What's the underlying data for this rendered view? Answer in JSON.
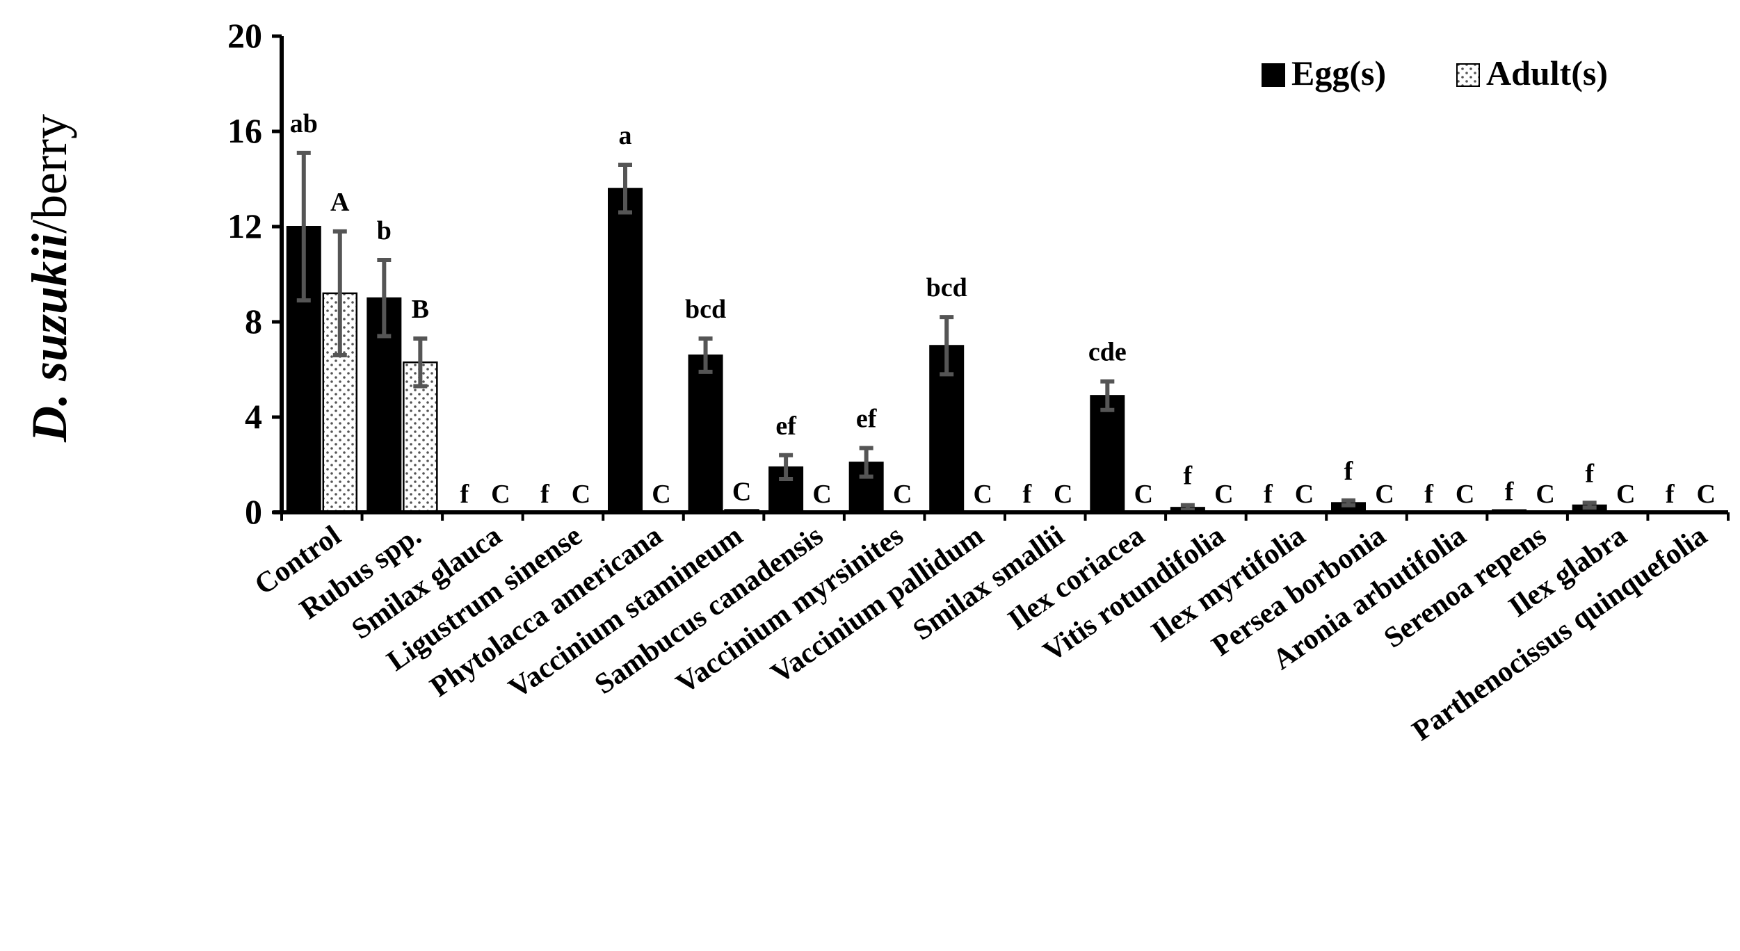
{
  "chart_data": {
    "type": "bar",
    "ylabel_italic": "D. suzukii",
    "ylabel_rest": "/berry",
    "xlabel": "",
    "title": "",
    "ylim": [
      0,
      20
    ],
    "yticks": [
      "0",
      "4",
      "8",
      "12",
      "16",
      "20"
    ],
    "legend_position": "top-right",
    "categories": [
      "Control",
      "Rubus spp.",
      "Smilax glauca",
      "Ligustrum sinense",
      "Phytolacca americana",
      "Vaccinium stamineum",
      "Sambucus canadensis",
      "Vaccinium myrsinites",
      "Vaccinium pallidum",
      "Smilax smallii",
      "Ilex coriacea",
      "Vitis rotundifolia",
      "Ilex myrtifolia",
      "Persea borbonia",
      "Aronia arbutifolia",
      "Serenoa repens",
      "Ilex glabra",
      "Parthenocissus quinquefolia"
    ],
    "series": [
      {
        "name": "Egg(s)",
        "color": "#000000",
        "values": [
          12.0,
          9.0,
          0.0,
          0.0,
          13.6,
          6.6,
          1.9,
          2.1,
          7.0,
          0.0,
          4.9,
          0.2,
          0.0,
          0.4,
          0.0,
          0.1,
          0.3,
          0.0
        ],
        "errors": [
          3.1,
          1.6,
          0.0,
          0.0,
          1.0,
          0.7,
          0.5,
          0.6,
          1.2,
          0.0,
          0.6,
          0.1,
          0.0,
          0.1,
          0.0,
          0.0,
          0.1,
          0.0
        ],
        "labels": [
          "ab",
          "b",
          "f",
          "f",
          "a",
          "bcd",
          "ef",
          "ef",
          "bcd",
          "f",
          "cde",
          "f",
          "f",
          "f",
          "f",
          "f",
          "f",
          "f"
        ]
      },
      {
        "name": "Adult(s)",
        "color": "#ffffff",
        "pattern": "dotted",
        "values": [
          9.2,
          6.3,
          0.0,
          0.0,
          0.0,
          0.1,
          0.0,
          0.0,
          0.0,
          0.0,
          0.0,
          0.0,
          0.0,
          0.0,
          0.0,
          0.0,
          0.0,
          0.0
        ],
        "errors": [
          2.6,
          1.0,
          0.0,
          0.0,
          0.0,
          0.0,
          0.0,
          0.0,
          0.0,
          0.0,
          0.0,
          0.0,
          0.0,
          0.0,
          0.0,
          0.0,
          0.0,
          0.0
        ],
        "labels": [
          "A",
          "B",
          "C",
          "C",
          "C",
          "C",
          "C",
          "C",
          "C",
          "C",
          "C",
          "C",
          "C",
          "C",
          "C",
          "C",
          "C",
          "C"
        ]
      }
    ]
  }
}
